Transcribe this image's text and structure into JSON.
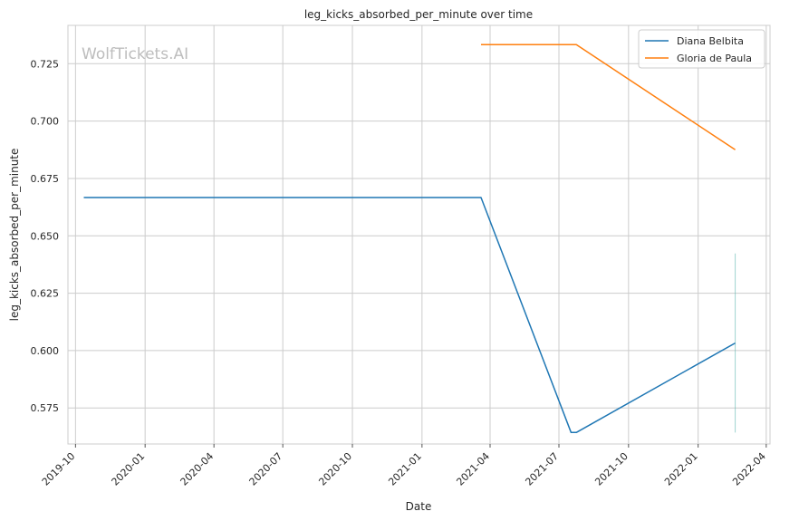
{
  "chart_data": {
    "type": "line",
    "title": "leg_kicks_absorbed_per_minute over time",
    "xlabel": "Date",
    "ylabel": "leg_kicks_absorbed_per_minute",
    "watermark": "WolfTickets.AI",
    "grid": true,
    "legend_position": "top-right",
    "xlim": [
      "2019-09-21",
      "2022-04-06"
    ],
    "ylim": [
      0.5593,
      0.7417
    ],
    "x_ticks": [
      {
        "date": "2019-10-01",
        "label": "2019-10"
      },
      {
        "date": "2020-01-01",
        "label": "2020-01"
      },
      {
        "date": "2020-04-01",
        "label": "2020-04"
      },
      {
        "date": "2020-07-01",
        "label": "2020-07"
      },
      {
        "date": "2020-10-01",
        "label": "2020-10"
      },
      {
        "date": "2021-01-01",
        "label": "2021-01"
      },
      {
        "date": "2021-04-01",
        "label": "2021-04"
      },
      {
        "date": "2021-07-01",
        "label": "2021-07"
      },
      {
        "date": "2021-10-01",
        "label": "2021-10"
      },
      {
        "date": "2022-01-01",
        "label": "2022-01"
      },
      {
        "date": "2022-04-01",
        "label": "2022-04"
      }
    ],
    "y_ticks": [
      {
        "value": 0.575,
        "label": "0.575"
      },
      {
        "value": 0.6,
        "label": "0.600"
      },
      {
        "value": 0.625,
        "label": "0.625"
      },
      {
        "value": 0.65,
        "label": "0.650"
      },
      {
        "value": 0.675,
        "label": "0.675"
      },
      {
        "value": 0.7,
        "label": "0.700"
      },
      {
        "value": 0.725,
        "label": "0.725"
      }
    ],
    "series": [
      {
        "name": "Diana Belbita",
        "color": "#1f77b4",
        "points": [
          {
            "x": "2019-10-12",
            "y": 0.6667
          },
          {
            "x": "2021-03-20",
            "y": 0.6667
          },
          {
            "x": "2021-07-17",
            "y": 0.5643
          },
          {
            "x": "2021-07-24",
            "y": 0.5643
          },
          {
            "x": "2022-02-19",
            "y": 0.6033
          }
        ]
      },
      {
        "name": "Gloria de Paula",
        "color": "#ff7f0e",
        "points": [
          {
            "x": "2021-03-20",
            "y": 0.7333
          },
          {
            "x": "2021-07-24",
            "y": 0.7333
          },
          {
            "x": "2022-02-19",
            "y": 0.6875
          }
        ]
      }
    ],
    "confidence_band": {
      "color": "#5fb8b0",
      "x": "2022-02-19",
      "y_range": [
        0.5643,
        0.6423
      ]
    }
  }
}
